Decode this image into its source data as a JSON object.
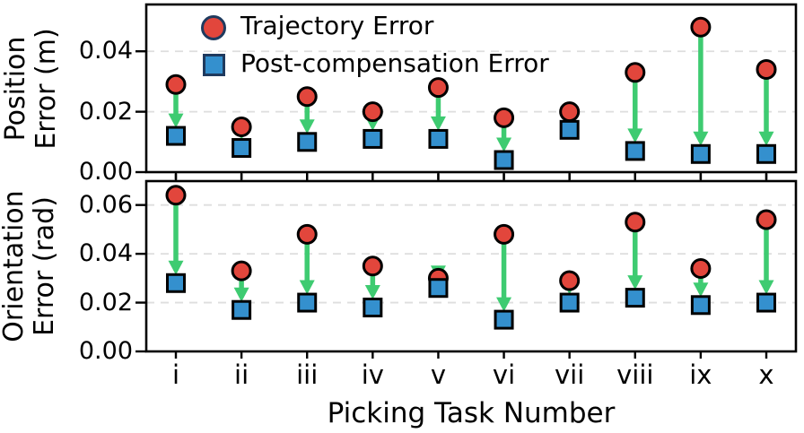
{
  "chart_data": {
    "type": "scatter",
    "title": "",
    "xlabel": "Picking Task Number",
    "categories": [
      "i",
      "ii",
      "iii",
      "iv",
      "v",
      "vi",
      "vii",
      "viii",
      "ix",
      "x"
    ],
    "grid": "horizontal-dashed",
    "legend": {
      "position": "upper-left-inside-top-plot",
      "entries": [
        {
          "label": "Trajectory Error",
          "marker": "circle"
        },
        {
          "label": "Post-compensation Error",
          "marker": "square"
        }
      ]
    },
    "colors": {
      "trajectory_fill": "#e2463c",
      "post_compensation_fill": "#3490ce",
      "marker_edge": "#000000",
      "legend_marker_edge": "#1f3a5e",
      "arrow_green": "#3ecb71",
      "gridline": "#dedede",
      "spine": "#000000"
    },
    "subplots": [
      {
        "name": "position-error",
        "ylabel": "Position Error (m)",
        "ylabel_lines": [
          "Position",
          "Error (m)"
        ],
        "ylim": [
          0,
          0.0555
        ],
        "yticks": [
          "0.00",
          "0.02",
          "0.04"
        ],
        "series": [
          {
            "name": "Trajectory Error",
            "marker": "circle",
            "values": [
              0.029,
              0.015,
              0.025,
              0.02,
              0.028,
              0.018,
              0.02,
              0.033,
              0.048,
              0.034
            ]
          },
          {
            "name": "Post-compensation Error",
            "marker": "square",
            "values": [
              0.012,
              0.008,
              0.01,
              0.011,
              0.011,
              0.004,
              0.014,
              0.007,
              0.006,
              0.006
            ]
          }
        ]
      },
      {
        "name": "orientation-error",
        "ylabel": "Orientation Error (rad)",
        "ylabel_lines": [
          "Orientation",
          "Error (rad)"
        ],
        "ylim": [
          0,
          0.0698
        ],
        "yticks": [
          "0.00",
          "0.02",
          "0.04",
          "0.06"
        ],
        "series": [
          {
            "name": "Trajectory Error",
            "marker": "circle",
            "values": [
              0.064,
              0.033,
              0.048,
              0.035,
              0.03,
              0.048,
              0.029,
              0.053,
              0.034,
              0.054
            ]
          },
          {
            "name": "Post-compensation Error",
            "marker": "square",
            "values": [
              0.028,
              0.017,
              0.02,
              0.018,
              0.026,
              0.013,
              0.02,
              0.022,
              0.019,
              0.02
            ]
          }
        ]
      }
    ]
  }
}
